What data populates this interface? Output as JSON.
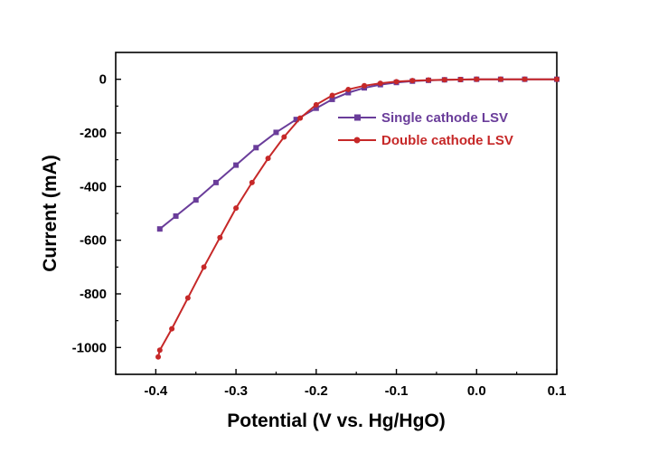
{
  "chart_data": {
    "type": "line",
    "xlabel": "Potential (V vs. Hg/HgO)",
    "ylabel": "Current (mA)",
    "xlim": [
      -0.45,
      0.1
    ],
    "ylim": [
      -1100,
      100
    ],
    "xticks": [
      -0.4,
      -0.3,
      -0.2,
      -0.1,
      0.0,
      0.1
    ],
    "xtick_labels": [
      "-0.4",
      "-0.3",
      "-0.2",
      "-0.1",
      "0.0",
      "0.1"
    ],
    "yticks": [
      0,
      -200,
      -400,
      -600,
      -800,
      -1000
    ],
    "ytick_labels": [
      "0",
      "-200",
      "-400",
      "-600",
      "-800",
      "-1000"
    ],
    "grid": false,
    "legend_position": "upper-right",
    "series": [
      {
        "name": "Single cathode LSV",
        "color": "#6a3d9a",
        "marker": "square",
        "points": [
          [
            -0.395,
            -558
          ],
          [
            -0.375,
            -510
          ],
          [
            -0.35,
            -450
          ],
          [
            -0.325,
            -385
          ],
          [
            -0.3,
            -320
          ],
          [
            -0.275,
            -255
          ],
          [
            -0.25,
            -198
          ],
          [
            -0.225,
            -150
          ],
          [
            -0.2,
            -108
          ],
          [
            -0.18,
            -75
          ],
          [
            -0.16,
            -50
          ],
          [
            -0.14,
            -32
          ],
          [
            -0.12,
            -20
          ],
          [
            -0.1,
            -12
          ],
          [
            -0.08,
            -7
          ],
          [
            -0.06,
            -4
          ],
          [
            -0.04,
            -2
          ],
          [
            -0.02,
            -1
          ],
          [
            0.0,
            0
          ],
          [
            0.03,
            0
          ],
          [
            0.06,
            0
          ],
          [
            0.1,
            0
          ]
        ]
      },
      {
        "name": "Double cathode LSV",
        "color": "#c62828",
        "marker": "circle",
        "points": [
          [
            -0.397,
            -1035
          ],
          [
            -0.395,
            -1010
          ],
          [
            -0.38,
            -930
          ],
          [
            -0.36,
            -815
          ],
          [
            -0.34,
            -700
          ],
          [
            -0.32,
            -590
          ],
          [
            -0.3,
            -480
          ],
          [
            -0.28,
            -385
          ],
          [
            -0.26,
            -295
          ],
          [
            -0.24,
            -215
          ],
          [
            -0.22,
            -145
          ],
          [
            -0.2,
            -95
          ],
          [
            -0.18,
            -60
          ],
          [
            -0.16,
            -38
          ],
          [
            -0.14,
            -24
          ],
          [
            -0.12,
            -15
          ],
          [
            -0.1,
            -9
          ],
          [
            -0.08,
            -5
          ],
          [
            -0.06,
            -3
          ],
          [
            -0.04,
            -2
          ],
          [
            -0.02,
            -1
          ],
          [
            0.0,
            0
          ],
          [
            0.03,
            0
          ],
          [
            0.06,
            0
          ],
          [
            0.1,
            0
          ]
        ]
      }
    ]
  }
}
